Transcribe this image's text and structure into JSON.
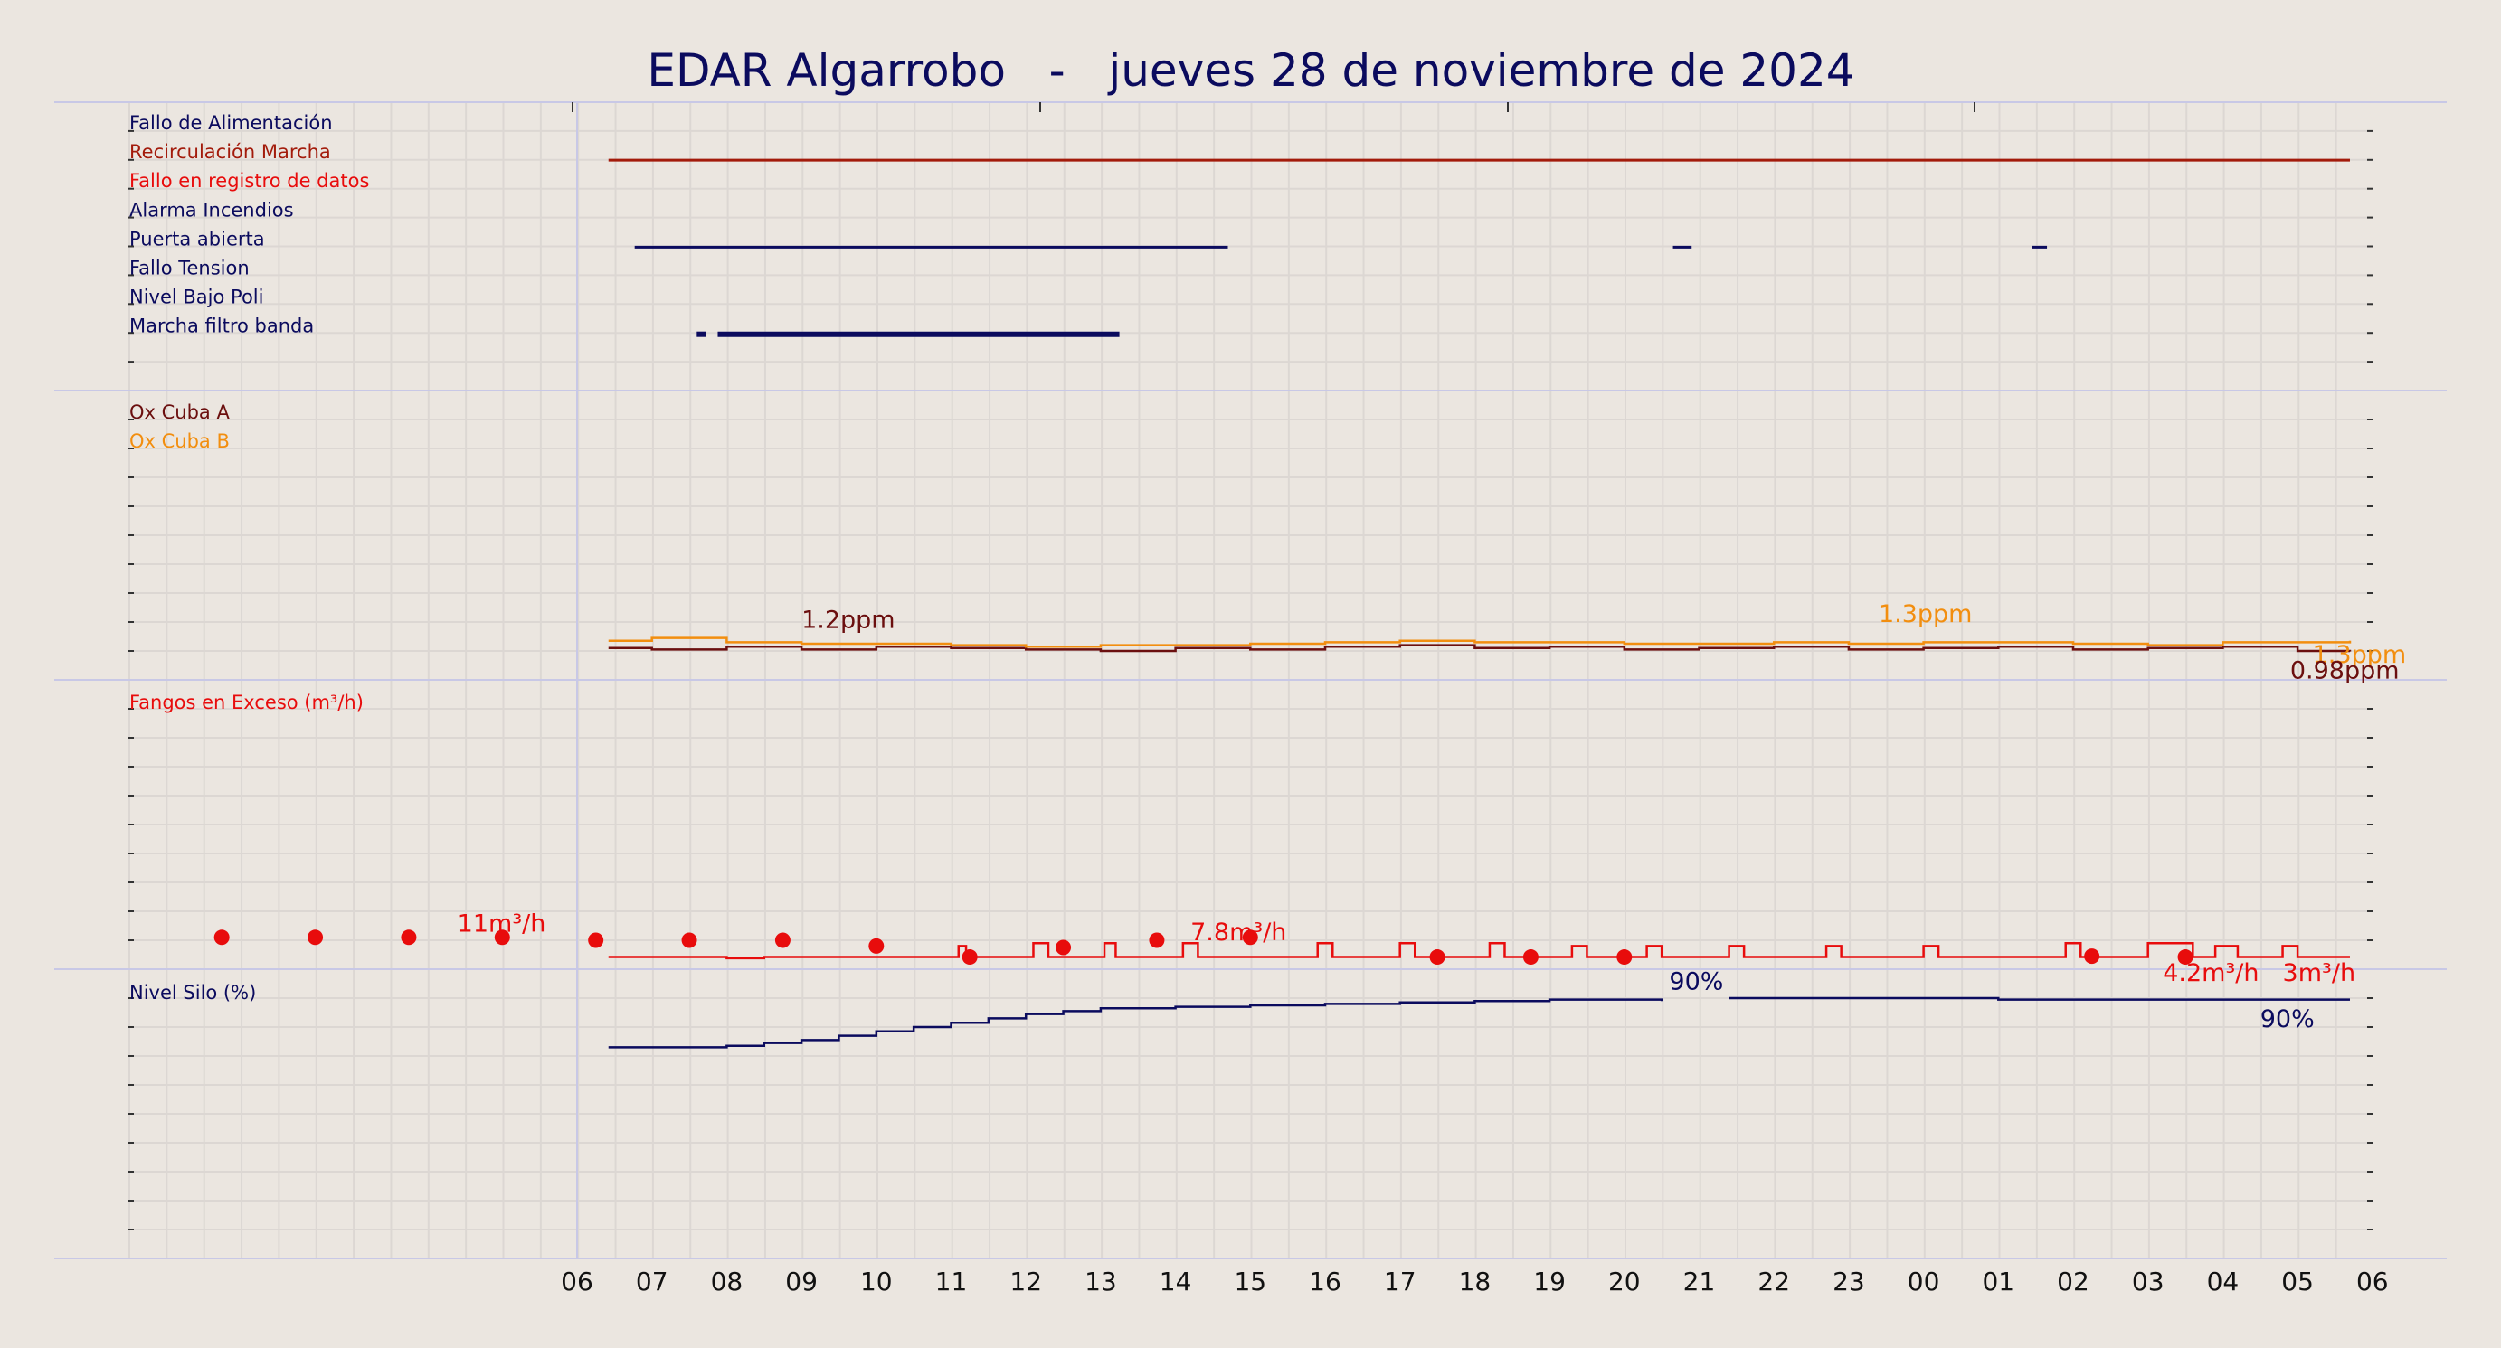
{
  "title": "EDAR Algarrobo   -   jueves 28 de noviembre de 2024",
  "colors": {
    "background": "#ebe6e0",
    "navy": "#0b0b5e",
    "darkred": "#a31b0b",
    "red": "#e80c0c",
    "orange": "#f28e0f",
    "maroon": "#6b0f0f",
    "grid": "#dcd7d3",
    "separator": "#c8c8e6"
  },
  "x_ticks": [
    "06",
    "07",
    "08",
    "09",
    "10",
    "11",
    "12",
    "13",
    "14",
    "15",
    "16",
    "17",
    "18",
    "19",
    "20",
    "21",
    "22",
    "23",
    "00",
    "01",
    "02",
    "03",
    "04",
    "05",
    "06"
  ],
  "chart_data": [
    {
      "type": "line",
      "panel": "alarms",
      "x_unit": "hours since 06:00 (28 nov)",
      "series": [
        {
          "name": "Fallo de Alimentación",
          "color": "#0b0b5e",
          "segments": []
        },
        {
          "name": "Recirculación Marcha",
          "color": "#a31b0b",
          "segments": [
            [
              0.42,
              23.7
            ]
          ]
        },
        {
          "name": "Fallo en registro de datos",
          "color": "#e80c0c",
          "segments": []
        },
        {
          "name": "Alarma Incendios",
          "color": "#0b0b5e",
          "segments": []
        },
        {
          "name": "Puerta abierta",
          "color": "#0b0b5e",
          "segments": [
            [
              0.77,
              8.7
            ],
            [
              14.65,
              14.9
            ],
            [
              19.45,
              19.65
            ]
          ]
        },
        {
          "name": "Fallo Tension",
          "color": "#0b0b5e",
          "segments": []
        },
        {
          "name": "Nivel Bajo Poli",
          "color": "#0b0b5e",
          "segments": []
        },
        {
          "name": "Marcha filtro banda",
          "color": "#0b0b5e",
          "segments": [
            [
              1.6,
              1.72
            ],
            [
              1.88,
              7.25
            ]
          ]
        }
      ]
    },
    {
      "type": "line",
      "panel": "oxygen",
      "ylim": [
        0,
        10
      ],
      "series": [
        {
          "name": "Ox Cuba A",
          "color": "#6b0f0f",
          "points": [
            [
              0.42,
              1.1
            ],
            [
              1,
              1.05
            ],
            [
              2,
              1.15
            ],
            [
              3,
              1.05
            ],
            [
              4,
              1.15
            ],
            [
              5,
              1.1
            ],
            [
              6,
              1.05
            ],
            [
              7,
              1.0
            ],
            [
              8,
              1.1
            ],
            [
              9,
              1.05
            ],
            [
              10,
              1.15
            ],
            [
              11,
              1.2
            ],
            [
              12,
              1.1
            ],
            [
              13,
              1.15
            ],
            [
              14,
              1.05
            ],
            [
              15,
              1.1
            ],
            [
              16,
              1.15
            ],
            [
              17,
              1.05
            ],
            [
              18,
              1.1
            ],
            [
              19,
              1.15
            ],
            [
              20,
              1.05
            ],
            [
              21,
              1.1
            ],
            [
              22,
              1.15
            ],
            [
              23,
              1.0
            ],
            [
              23.7,
              0.98
            ]
          ]
        },
        {
          "name": "Ox Cuba B",
          "color": "#f28e0f",
          "points": [
            [
              0.42,
              1.35
            ],
            [
              1,
              1.45
            ],
            [
              1.7,
              1.45
            ],
            [
              2,
              1.3
            ],
            [
              3,
              1.25
            ],
            [
              4,
              1.25
            ],
            [
              5,
              1.2
            ],
            [
              6,
              1.15
            ],
            [
              7,
              1.2
            ],
            [
              8,
              1.2
            ],
            [
              9,
              1.25
            ],
            [
              10,
              1.3
            ],
            [
              11,
              1.35
            ],
            [
              12,
              1.3
            ],
            [
              13,
              1.3
            ],
            [
              14,
              1.25
            ],
            [
              15,
              1.25
            ],
            [
              16,
              1.3
            ],
            [
              17,
              1.25
            ],
            [
              18,
              1.3
            ],
            [
              19,
              1.3
            ],
            [
              20,
              1.25
            ],
            [
              21,
              1.2
            ],
            [
              22,
              1.3
            ],
            [
              23,
              1.3
            ],
            [
              23.7,
              1.35
            ]
          ]
        }
      ],
      "annotations": [
        {
          "text": "1.2ppm",
          "x": 3,
          "y": 1.8,
          "color": "#6b0f0f"
        },
        {
          "text": "1.3ppm",
          "x": 17.4,
          "y": 2.0,
          "color": "#f28e0f"
        },
        {
          "text": "1.3ppm",
          "x": 23.2,
          "y": 0.6,
          "color": "#f28e0f"
        },
        {
          "text": "0.98ppm",
          "x": 22.9,
          "y": 0.05,
          "color": "#6b0f0f"
        }
      ]
    },
    {
      "type": "line",
      "panel": "fangos",
      "ylim": [
        0,
        100
      ],
      "series": [
        {
          "name": "Fangos en Exceso (m³/h)",
          "color": "#e80c0c",
          "points": [
            [
              0.42,
              4.2
            ],
            [
              1.9,
              4.2
            ],
            [
              2,
              3.8
            ],
            [
              2.5,
              4.2
            ],
            [
              5,
              4.2
            ],
            [
              5.1,
              8
            ],
            [
              5.2,
              4.2
            ],
            [
              6,
              4.2
            ],
            [
              6.1,
              9
            ],
            [
              6.3,
              4.2
            ],
            [
              7,
              4.2
            ],
            [
              7.05,
              9
            ],
            [
              7.2,
              4.2
            ],
            [
              8,
              4.2
            ],
            [
              8.1,
              9
            ],
            [
              8.3,
              4.2
            ],
            [
              9.8,
              4.2
            ],
            [
              9.9,
              9
            ],
            [
              10.1,
              4.2
            ],
            [
              10.9,
              4.2
            ],
            [
              11.0,
              9
            ],
            [
              11.2,
              4.2
            ],
            [
              12.1,
              4.2
            ],
            [
              12.2,
              9
            ],
            [
              12.4,
              4.2
            ],
            [
              13.2,
              4.2
            ],
            [
              13.3,
              8
            ],
            [
              13.5,
              4.2
            ],
            [
              14.2,
              4.2
            ],
            [
              14.3,
              8
            ],
            [
              14.5,
              4.2
            ],
            [
              15.3,
              4.2
            ],
            [
              15.4,
              8
            ],
            [
              15.6,
              4.2
            ],
            [
              16.6,
              4.2
            ],
            [
              16.7,
              8
            ],
            [
              16.9,
              4.2
            ],
            [
              17.9,
              4.2
            ],
            [
              18.0,
              8
            ],
            [
              18.2,
              4.2
            ],
            [
              19.8,
              4.2
            ],
            [
              19.9,
              9
            ],
            [
              20.1,
              4.2
            ],
            [
              20.8,
              4.2
            ],
            [
              21.0,
              9
            ],
            [
              21.6,
              4.2
            ],
            [
              21.8,
              4.2
            ],
            [
              21.9,
              8
            ],
            [
              22.2,
              4.2
            ],
            [
              22.7,
              4.2
            ],
            [
              22.8,
              8
            ],
            [
              23.0,
              4.2
            ],
            [
              23.7,
              4.2
            ]
          ]
        },
        {
          "name": "Fangos en Exceso puntos",
          "color": "#e80c0c",
          "markers": true,
          "points": [
            [
              -4.75,
              11
            ],
            [
              -3.5,
              11
            ],
            [
              -2.25,
              11
            ],
            [
              -1,
              11
            ],
            [
              0.25,
              10
            ],
            [
              1.5,
              10
            ],
            [
              2.75,
              10
            ],
            [
              4,
              8
            ],
            [
              5.25,
              4.2
            ],
            [
              6.5,
              7.5
            ],
            [
              7.75,
              10
            ],
            [
              9,
              11
            ],
            [
              11.5,
              4.2
            ],
            [
              12.75,
              4.2
            ],
            [
              14,
              4.2
            ],
            [
              20.25,
              4.5
            ],
            [
              21.5,
              4.2
            ]
          ]
        }
      ],
      "annotations": [
        {
          "text": "11m³/h",
          "x": -1.6,
          "y": 13,
          "color": "#e80c0c"
        },
        {
          "text": "7.8m³/h",
          "x": 8.2,
          "y": 10,
          "color": "#e80c0c"
        },
        {
          "text": "4.2m³/h",
          "x": 21.2,
          "y": -4,
          "color": "#e80c0c"
        },
        {
          "text": "3m³/h",
          "x": 22.8,
          "y": -4,
          "color": "#e80c0c"
        }
      ]
    },
    {
      "type": "line",
      "panel": "silo",
      "ylim": [
        0,
        100
      ],
      "series": [
        {
          "name": "Nivel Silo (%)",
          "color": "#0b0b5e",
          "points": [
            [
              0.42,
              73
            ],
            [
              1.5,
              73
            ],
            [
              2,
              73.5
            ],
            [
              2.5,
              74.5
            ],
            [
              3,
              75.5
            ],
            [
              3.5,
              77
            ],
            [
              4,
              78.5
            ],
            [
              4.5,
              80
            ],
            [
              5,
              81.5
            ],
            [
              5.5,
              83
            ],
            [
              6,
              84.5
            ],
            [
              6.5,
              85.5
            ],
            [
              7,
              86.5
            ],
            [
              8,
              87
            ],
            [
              9,
              87.5
            ],
            [
              10,
              88
            ],
            [
              11,
              88.5
            ],
            [
              12,
              89
            ],
            [
              13,
              89.5
            ],
            [
              14,
              89.5
            ],
            [
              14.5,
              89
            ],
            [
              15.2,
              null
            ],
            [
              15.4,
              90
            ],
            [
              17,
              90
            ],
            [
              19,
              89.5
            ],
            [
              20,
              89.5
            ],
            [
              21,
              89.5
            ],
            [
              23.7,
              89.5
            ]
          ]
        }
      ],
      "annotations": [
        {
          "text": "90%",
          "x": 14.6,
          "y": 93,
          "color": "#0b0b5e"
        },
        {
          "text": "90%",
          "x": 22.5,
          "y": 80,
          "color": "#0b0b5e"
        }
      ]
    }
  ]
}
